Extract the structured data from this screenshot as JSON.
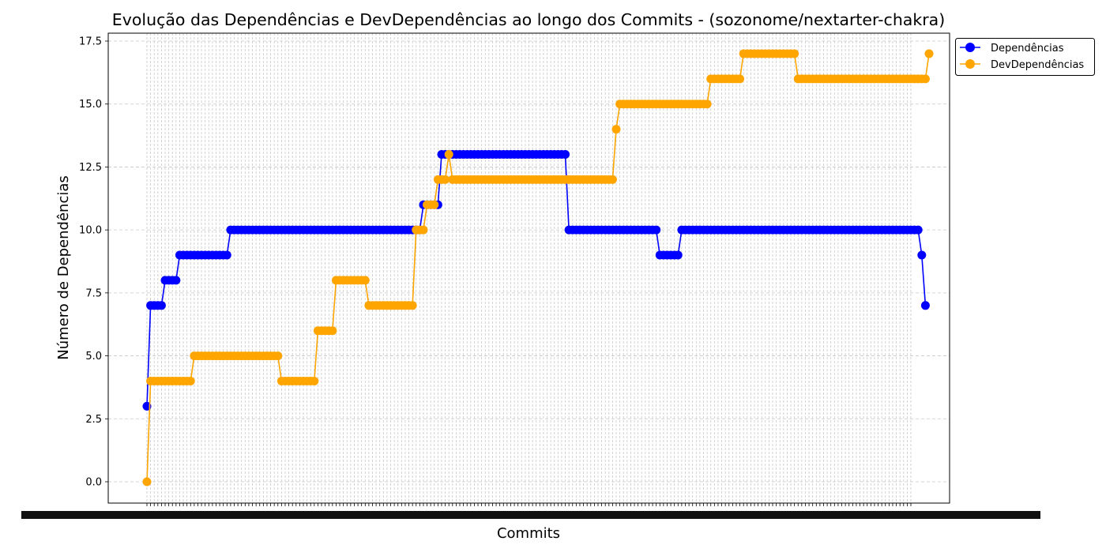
{
  "chart_data": {
    "type": "line",
    "title": "Evolução das Dependências e DevDependências ao longo dos Commits - (sozonome/nextarter-chakra)",
    "xlabel": "Commits",
    "ylabel": "Número de Dependências",
    "ylim": [
      -1.0,
      17.8
    ],
    "yticks": [
      "0.0",
      "2.5",
      "5.0",
      "7.5",
      "10.0",
      "12.5",
      "15.0",
      "17.5"
    ],
    "x_count": 211,
    "x_tick_labels_note": "commit hashes overlap and are illegible",
    "grid": true,
    "legend_position": "outside-top-right",
    "colors": {
      "dependencias": "#0000ff",
      "devdependencias": "#ffa500"
    },
    "series": [
      {
        "name": "Dependências",
        "color": "#0000ff",
        "values": [
          3,
          7,
          7,
          7,
          7,
          8,
          8,
          8,
          8,
          9,
          9,
          9,
          9,
          9,
          9,
          9,
          9,
          9,
          9,
          9,
          9,
          9,
          9,
          10,
          10,
          10,
          10,
          10,
          10,
          10,
          10,
          10,
          10,
          10,
          10,
          10,
          10,
          10,
          10,
          10,
          10,
          10,
          10,
          10,
          10,
          10,
          10,
          10,
          10,
          10,
          10,
          10,
          10,
          10,
          10,
          10,
          10,
          10,
          10,
          10,
          10,
          10,
          10,
          10,
          10,
          10,
          10,
          10,
          10,
          10,
          10,
          10,
          10,
          10,
          10,
          10,
          11,
          11,
          11,
          11,
          11,
          13,
          13,
          13,
          13,
          13,
          13,
          13,
          13,
          13,
          13,
          13,
          13,
          13,
          13,
          13,
          13,
          13,
          13,
          13,
          13,
          13,
          13,
          13,
          13,
          13,
          13,
          13,
          13,
          13,
          13,
          13,
          13,
          13,
          13,
          13,
          10,
          10,
          10,
          10,
          10,
          10,
          10,
          10,
          10,
          10,
          10,
          10,
          10,
          10,
          10,
          10,
          10,
          10,
          10,
          10,
          10,
          10,
          10,
          10,
          10,
          9,
          9,
          9,
          9,
          9,
          9,
          10,
          10,
          10,
          10,
          10,
          10,
          10,
          10,
          10,
          10,
          10,
          10,
          10,
          10,
          10,
          10,
          10,
          10,
          10,
          10,
          10,
          10,
          10,
          10,
          10,
          10,
          10,
          10,
          10,
          10,
          10,
          10,
          10,
          10,
          10,
          10,
          10,
          10,
          10,
          10,
          10,
          10,
          10,
          10,
          10,
          10,
          10,
          10,
          10,
          10,
          10,
          10,
          10,
          10,
          10,
          10,
          10,
          10,
          10,
          10,
          10,
          10,
          10,
          10,
          10,
          10,
          9,
          7
        ]
      },
      {
        "name": "DevDependências",
        "color": "#ffa500",
        "values": [
          0,
          4,
          4,
          4,
          4,
          4,
          4,
          4,
          4,
          4,
          4,
          4,
          4,
          5,
          5,
          5,
          5,
          5,
          5,
          5,
          5,
          5,
          5,
          5,
          5,
          5,
          5,
          5,
          5,
          5,
          5,
          5,
          5,
          5,
          5,
          5,
          5,
          4,
          4,
          4,
          4,
          4,
          4,
          4,
          4,
          4,
          4,
          6,
          6,
          6,
          6,
          6,
          8,
          8,
          8,
          8,
          8,
          8,
          8,
          8,
          8,
          7,
          7,
          7,
          7,
          7,
          7,
          7,
          7,
          7,
          7,
          7,
          7,
          7,
          10,
          10,
          10,
          11,
          11,
          11,
          12,
          12,
          12,
          13,
          12,
          12,
          12,
          12,
          12,
          12,
          12,
          12,
          12,
          12,
          12,
          12,
          12,
          12,
          12,
          12,
          12,
          12,
          12,
          12,
          12,
          12,
          12,
          12,
          12,
          12,
          12,
          12,
          12,
          12,
          12,
          12,
          12,
          12,
          12,
          12,
          12,
          12,
          12,
          12,
          12,
          12,
          12,
          12,
          12,
          14,
          15,
          15,
          15,
          15,
          15,
          15,
          15,
          15,
          15,
          15,
          15,
          15,
          15,
          15,
          15,
          15,
          15,
          15,
          15,
          15,
          15,
          15,
          15,
          15,
          15,
          16,
          16,
          16,
          16,
          16,
          16,
          16,
          16,
          16,
          17,
          17,
          17,
          17,
          17,
          17,
          17,
          17,
          17,
          17,
          17,
          17,
          17,
          17,
          17,
          16,
          16,
          16,
          16,
          16,
          16,
          16,
          16,
          16,
          16,
          16,
          16,
          16,
          16,
          16,
          16,
          16,
          16,
          16,
          16,
          16,
          16,
          16,
          16,
          16,
          16,
          16,
          16,
          16,
          16,
          16,
          16,
          16,
          16,
          16,
          16,
          17
        ]
      }
    ]
  }
}
